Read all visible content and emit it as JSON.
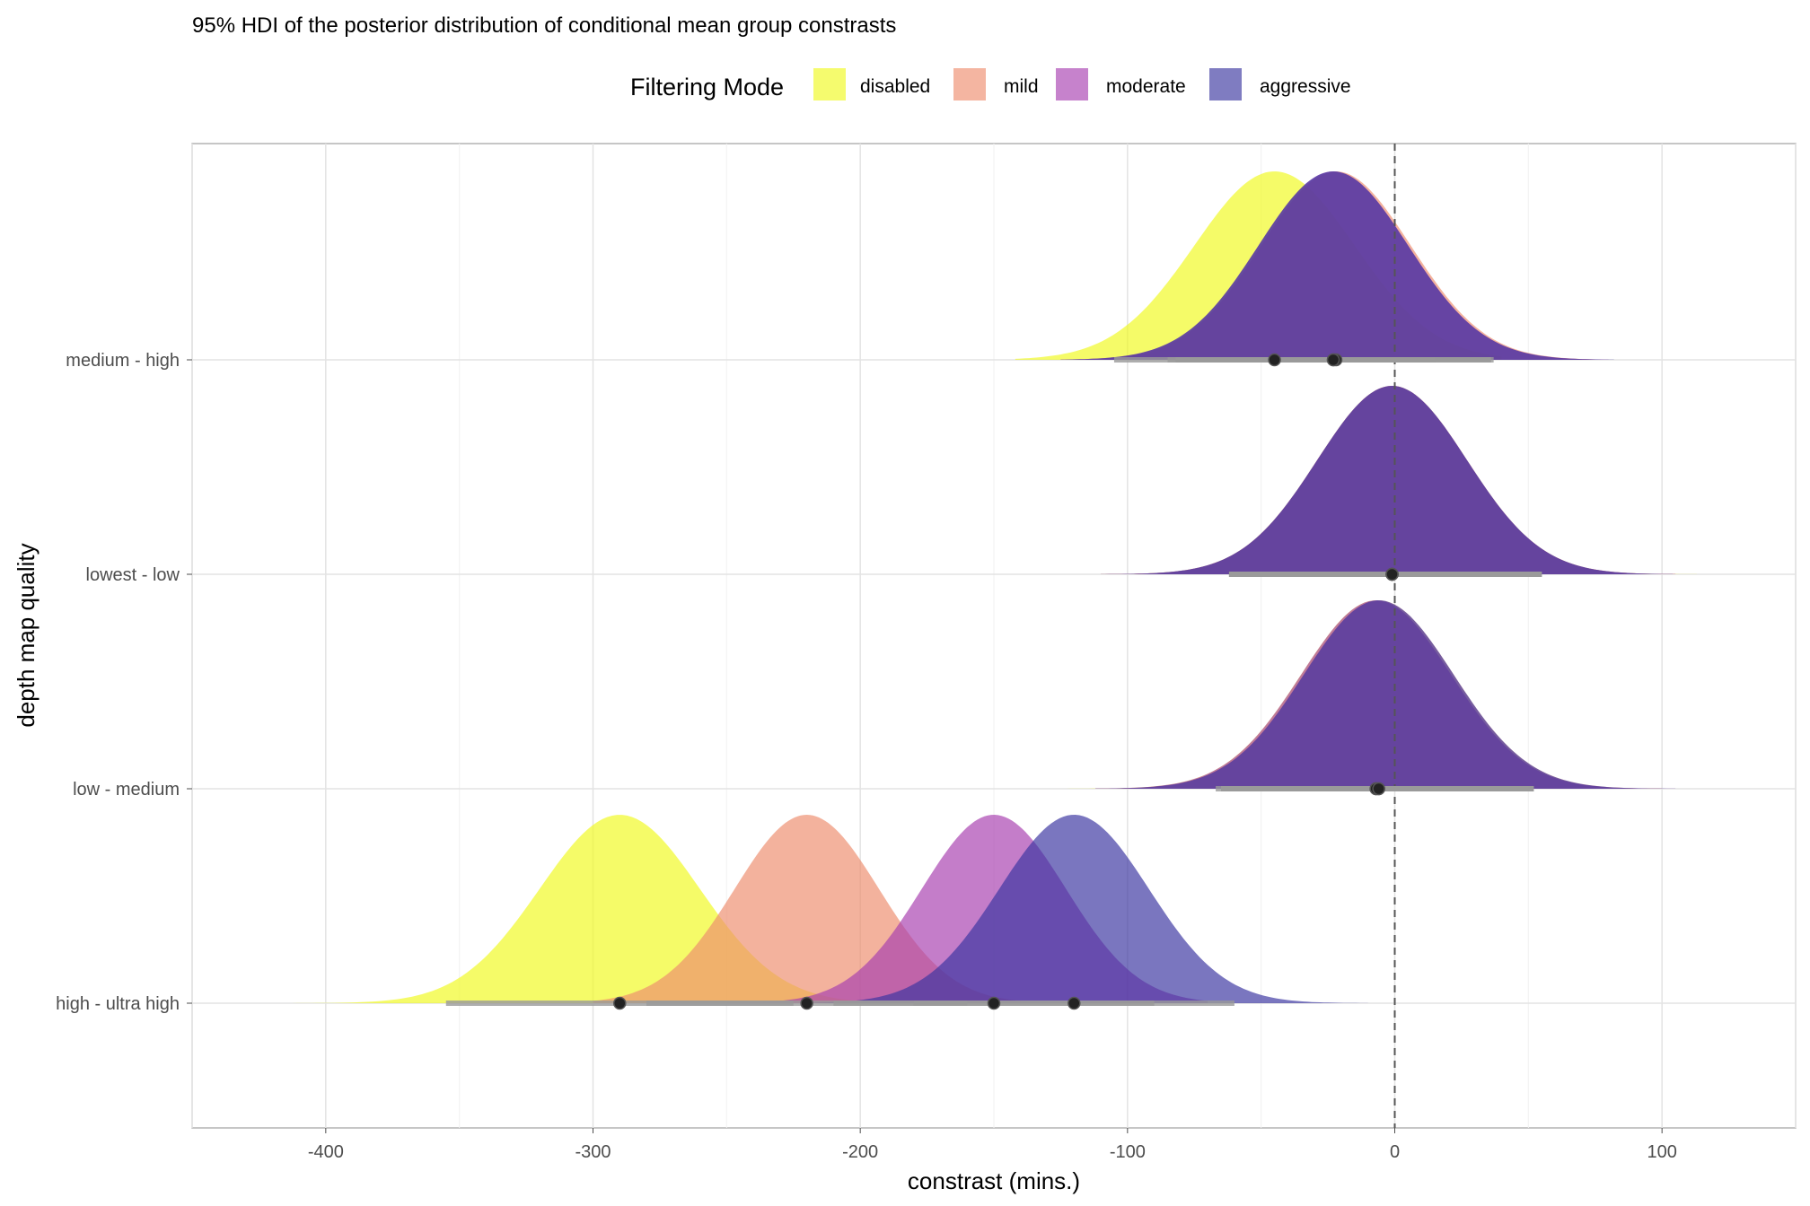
{
  "chart_data": {
    "type": "ridgeline-density",
    "title": "95% HDI of the posterior distribution of conditional mean group constrasts",
    "xlabel": "constrast (mins.)",
    "ylabel": "depth map quality",
    "xlim": [
      -450,
      150
    ],
    "x_ticks": [
      -400,
      -300,
      -200,
      -100,
      0,
      100
    ],
    "reference_line_x": 0,
    "grid": true,
    "legend": {
      "title": "Filtering Mode",
      "position": "top",
      "items": [
        {
          "label": "disabled",
          "color": "#f0f921"
        },
        {
          "label": "mild",
          "color": "#ee8e6e"
        },
        {
          "label": "moderate",
          "color": "#a83fb0"
        },
        {
          "label": "aggressive",
          "color": "#3b35a0"
        }
      ]
    },
    "categories": [
      "high - ultra high",
      "low - medium",
      "lowest - low",
      "medium - high"
    ],
    "series": [
      {
        "name": "disabled",
        "color": "#f0f921",
        "groups": [
          {
            "category": "high - ultra high",
            "mean": -290,
            "sd": 30,
            "hdi": [
              -355,
              -225
            ],
            "range": [
              -422,
              -160
            ]
          },
          {
            "category": "low - medium",
            "mean": -7,
            "sd": 28,
            "hdi": [
              -65,
              50
            ],
            "range": [
              -133,
              100
            ]
          },
          {
            "category": "lowest - low",
            "mean": -1,
            "sd": 28,
            "hdi": [
              -62,
              55
            ],
            "range": [
              -110,
              113
            ]
          },
          {
            "category": "medium - high",
            "mean": -45,
            "sd": 30,
            "hdi": [
              -105,
              15
            ],
            "range": [
              -142,
              40
            ]
          }
        ]
      },
      {
        "name": "mild",
        "color": "#ee8e6e",
        "groups": [
          {
            "category": "high - ultra high",
            "mean": -220,
            "sd": 27,
            "hdi": [
              -280,
              -160
            ],
            "range": [
              -300,
              -140
            ]
          },
          {
            "category": "low - medium",
            "mean": -6,
            "sd": 28,
            "hdi": [
              -65,
              52
            ],
            "range": [
              -112,
              100
            ]
          },
          {
            "category": "lowest - low",
            "mean": -1,
            "sd": 28,
            "hdi": [
              -62,
              55
            ],
            "range": [
              -110,
              105
            ]
          },
          {
            "category": "medium - high",
            "mean": -22,
            "sd": 28,
            "hdi": [
              -82,
              36
            ],
            "range": [
              -125,
              75
            ]
          }
        ]
      },
      {
        "name": "moderate",
        "color": "#a83fb0",
        "groups": [
          {
            "category": "high - ultra high",
            "mean": -150,
            "sd": 27,
            "hdi": [
              -210,
              -90
            ],
            "range": [
              -250,
              -70
            ]
          },
          {
            "category": "low - medium",
            "mean": -7,
            "sd": 28,
            "hdi": [
              -65,
              52
            ],
            "range": [
              -112,
              105
            ]
          },
          {
            "category": "lowest - low",
            "mean": -1,
            "sd": 28,
            "hdi": [
              -62,
              55
            ],
            "range": [
              -110,
              105
            ]
          },
          {
            "category": "medium - high",
            "mean": -23,
            "sd": 28,
            "hdi": [
              -82,
              36
            ],
            "range": [
              -125,
              80
            ]
          }
        ]
      },
      {
        "name": "aggressive",
        "color": "#3b35a0",
        "groups": [
          {
            "category": "high - ultra high",
            "mean": -120,
            "sd": 28,
            "hdi": [
              -180,
              -60
            ],
            "range": [
              -220,
              -10
            ]
          },
          {
            "category": "low - medium",
            "mean": -6,
            "sd": 28,
            "hdi": [
              -67,
              52
            ],
            "range": [
              -112,
              105
            ]
          },
          {
            "category": "lowest - low",
            "mean": -1,
            "sd": 28,
            "hdi": [
              -62,
              55
            ],
            "range": [
              -110,
              104
            ]
          },
          {
            "category": "medium - high",
            "mean": -23,
            "sd": 28,
            "hdi": [
              -85,
              37
            ],
            "range": [
              -125,
              82
            ]
          }
        ]
      }
    ]
  }
}
